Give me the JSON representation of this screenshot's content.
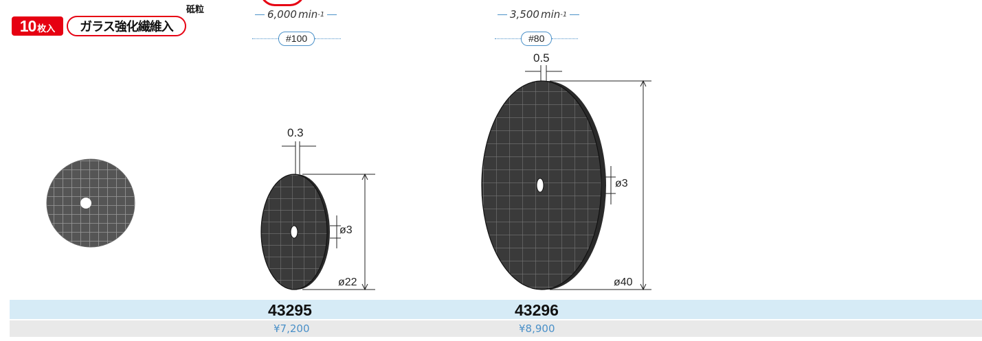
{
  "header": {
    "quantity_number": "10",
    "quantity_unit": "枚入",
    "material": "ガラス強化繊維入",
    "grit_heading": "砥粒"
  },
  "products": [
    {
      "speed_value": "6,000",
      "speed_unit": "min",
      "speed_exponent": "-1",
      "grit": "#100",
      "thickness": "0.3",
      "hole_diameter": "ø3",
      "diameter": "ø22",
      "code": "43295",
      "price": "¥7,200"
    },
    {
      "speed_value": "3,500",
      "speed_unit": "min",
      "speed_exponent": "-1",
      "grit": "#80",
      "thickness": "0.5",
      "hole_diameter": "ø3",
      "diameter": "ø40",
      "code": "43296",
      "price": "¥8,900"
    }
  ],
  "colors": {
    "accent_red": "#e60012",
    "accent_blue": "#4a90c8",
    "code_row_bg": "#d6ebf6",
    "price_row_bg": "#e9e9e9"
  }
}
